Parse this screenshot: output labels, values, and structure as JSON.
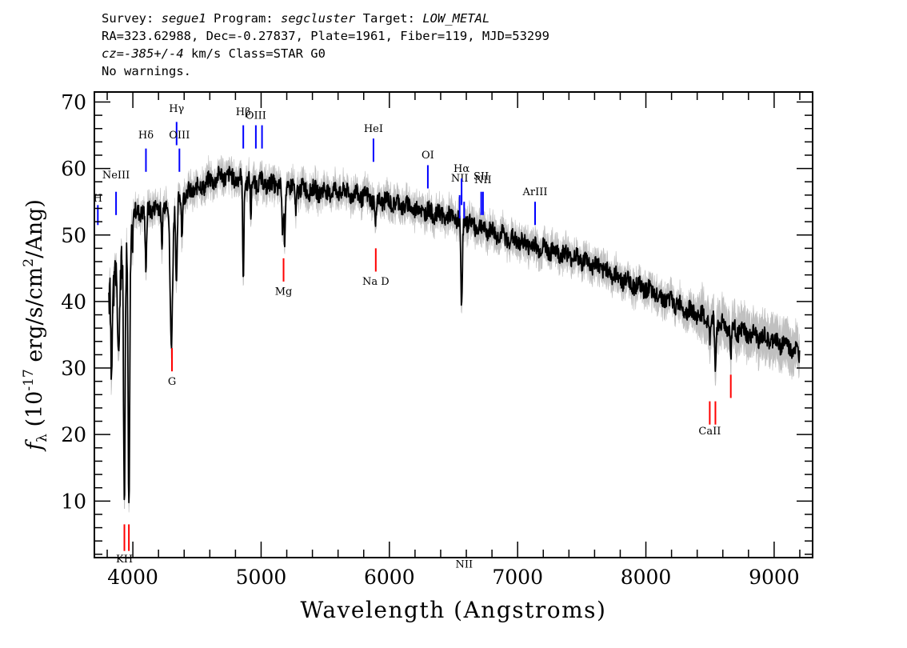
{
  "header": {
    "line1": {
      "survey_label": "Survey: ",
      "survey": "segue1",
      "program_label": " Program: ",
      "program": "segcluster",
      "target_label": " Target: ",
      "target": "LOW_METAL"
    },
    "line2": "RA=323.62988, Dec=-0.27837, Plate=1961, Fiber=119, MJD=53299",
    "line3": {
      "cz": "cz=-385+/-4",
      "rest": " km/s Class=STAR G0"
    },
    "line4": "No warnings."
  },
  "chart_data": {
    "type": "line",
    "xlabel": "Wavelength (Angstroms)",
    "ylabel": "f_λ (10^-17 erg/s/cm^2/Ang)",
    "ylabel_parts": {
      "f": "f",
      "sub": "λ",
      "open": " (10",
      "sup1": "-17",
      "mid": " erg/s/cm",
      "sup2": "2",
      "close": "/Ang)"
    },
    "xlim": [
      3700,
      9300
    ],
    "ylim": [
      1.5,
      71.5
    ],
    "xticks": [
      4000,
      5000,
      6000,
      7000,
      8000,
      9000
    ],
    "yticks": [
      10,
      20,
      30,
      40,
      50,
      60,
      70
    ],
    "grid": false,
    "colors": {
      "flux": "#000000",
      "error": "#c0c0c0",
      "emission": "#0000ff",
      "absorption": "#ff0000"
    },
    "continuum": [
      [
        3810,
        45
      ],
      [
        3860,
        46
      ],
      [
        3900,
        49
      ],
      [
        4000,
        53
      ],
      [
        4100,
        54
      ],
      [
        4200,
        54
      ],
      [
        4300,
        55
      ],
      [
        4400,
        56
      ],
      [
        4500,
        57
      ],
      [
        4600,
        58
      ],
      [
        4700,
        59
      ],
      [
        4800,
        58.5
      ],
      [
        4900,
        58.2
      ],
      [
        5000,
        57.8
      ],
      [
        5100,
        57.5
      ],
      [
        5200,
        57.3
      ],
      [
        5300,
        57
      ],
      [
        5400,
        56.7
      ],
      [
        5500,
        56.5
      ],
      [
        5600,
        56.6
      ],
      [
        5700,
        56.2
      ],
      [
        5800,
        55.8
      ],
      [
        5900,
        55.3
      ],
      [
        6000,
        55
      ],
      [
        6100,
        54.5
      ],
      [
        6200,
        54
      ],
      [
        6300,
        53.5
      ],
      [
        6400,
        53
      ],
      [
        6500,
        52.5
      ],
      [
        6600,
        52
      ],
      [
        6700,
        51.2
      ],
      [
        6800,
        50.5
      ],
      [
        6900,
        49.7
      ],
      [
        7000,
        49
      ],
      [
        7200,
        48
      ],
      [
        7400,
        47
      ],
      [
        7600,
        45.5
      ],
      [
        7800,
        43.5
      ],
      [
        8000,
        41.8
      ],
      [
        8200,
        40
      ],
      [
        8400,
        38
      ],
      [
        8600,
        36.5
      ],
      [
        8800,
        35
      ],
      [
        9000,
        34
      ],
      [
        9100,
        33.5
      ],
      [
        9200,
        32
      ]
    ],
    "absorption_features": [
      [
        3835,
        33,
        6
      ],
      [
        3890,
        36,
        8
      ],
      [
        3933.7,
        10,
        6
      ],
      [
        3968.5,
        12,
        6
      ],
      [
        4101.7,
        45,
        6
      ],
      [
        4226,
        48,
        4
      ],
      [
        4300,
        34,
        10
      ],
      [
        4340.5,
        42,
        6
      ],
      [
        4383,
        50,
        4
      ],
      [
        4861.3,
        44,
        5
      ],
      [
        4920,
        52,
        4
      ],
      [
        5167,
        50,
        5
      ],
      [
        5183,
        49,
        5
      ],
      [
        5270,
        53,
        5
      ],
      [
        5892,
        51,
        5
      ],
      [
        6563,
        39.5,
        6
      ],
      [
        8498,
        34,
        5
      ],
      [
        8542,
        30,
        5
      ],
      [
        8662,
        32,
        5
      ]
    ],
    "emission_lines": [
      {
        "label": "H",
        "wavelength": 3727,
        "y0": 51.5,
        "y1": 54.5,
        "label_y": 55
      },
      {
        "label": "NeIII",
        "wavelength": 3869,
        "y0": 53,
        "y1": 56.5,
        "label_y": 58.5
      },
      {
        "label": "Hδ",
        "wavelength": 4102,
        "y0": 59.5,
        "y1": 63,
        "label_y": 64.5
      },
      {
        "label": "Hγ",
        "wavelength": 4341,
        "y0": 63.5,
        "y1": 67,
        "label_y": 68.5
      },
      {
        "label": "OIII",
        "wavelength": 4363,
        "y0": 59.5,
        "y1": 63,
        "label_y": 64.5
      },
      {
        "label": "Hβ",
        "wavelength": 4861,
        "y0": 63,
        "y1": 66.5,
        "label_y": 68
      },
      {
        "label": "OIII",
        "wavelength": 4959,
        "y0": 63,
        "y1": 66.5,
        "label_y": 67.5
      },
      {
        "label": "",
        "wavelength": 5007,
        "y0": 63,
        "y1": 66.5,
        "label_y": 0
      },
      {
        "label": "HeI",
        "wavelength": 5876,
        "y0": 61,
        "y1": 64.5,
        "label_y": 65.5
      },
      {
        "label": "OI",
        "wavelength": 6300,
        "y0": 57,
        "y1": 60.5,
        "label_y": 61.5
      },
      {
        "label": "NII",
        "wavelength": 6548,
        "y0": 52.5,
        "y1": 56,
        "label_y": 58
      },
      {
        "label": "Hα",
        "wavelength": 6563,
        "y0": 54.5,
        "y1": 58.5,
        "label_y": 59.5
      },
      {
        "label": "NII",
        "wavelength": 6583,
        "y0": 52.5,
        "y1": 55,
        "label_y": 0
      },
      {
        "label": "SII",
        "wavelength": 6716,
        "y0": 53,
        "y1": 56.5,
        "label_y": 58.3
      },
      {
        "label": "NII",
        "wavelength": 6730,
        "y0": 53,
        "y1": 56.5,
        "label_y": 57.8
      },
      {
        "label": "ArIII",
        "wavelength": 7136,
        "y0": 51.5,
        "y1": 55,
        "label_y": 56
      }
    ],
    "absorption_lines": [
      {
        "label": "KH",
        "wavelength": 3934,
        "y0": 2.5,
        "y1": 6.5,
        "label_y": 0.8
      },
      {
        "label": "",
        "wavelength": 3969,
        "y0": 2.5,
        "y1": 6.5,
        "label_y": 0
      },
      {
        "label": "G",
        "wavelength": 4305,
        "y0": 29.5,
        "y1": 33,
        "label_y": 27.5
      },
      {
        "label": "Mg",
        "wavelength": 5175,
        "y0": 43,
        "y1": 46.5,
        "label_y": 41
      },
      {
        "label": "Na D",
        "wavelength": 5894,
        "y0": 44.5,
        "y1": 48,
        "label_y": 42.5
      },
      {
        "label": "CaII",
        "wavelength": 8498,
        "y0": 21.5,
        "y1": 25,
        "label_y": 20
      },
      {
        "label": "",
        "wavelength": 8542,
        "y0": 21.5,
        "y1": 25,
        "label_y": 0
      },
      {
        "label": "",
        "wavelength": 8662,
        "y0": 25.5,
        "y1": 29,
        "label_y": 0
      }
    ]
  }
}
